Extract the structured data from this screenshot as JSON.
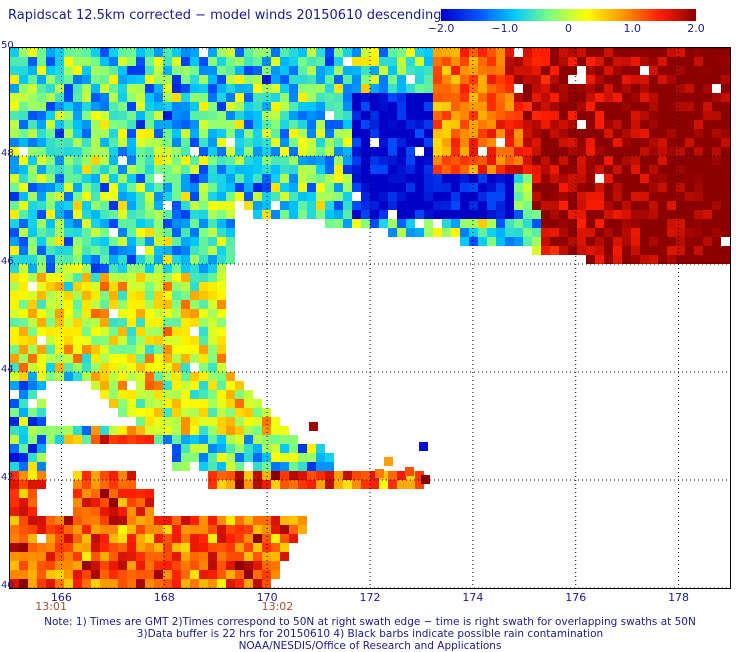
{
  "title": "Rapidscat 12.5km corrected − model winds 20150610 descending",
  "colorbar": {
    "labels": [
      "−2.0",
      "−1.0",
      "0",
      "1.0",
      "2.0"
    ],
    "values": [
      -2.0,
      -1.0,
      0,
      1.0,
      2.0
    ],
    "min": -2.0,
    "max": 2.0,
    "colors": [
      "#0000c8",
      "#0050ff",
      "#00c8ff",
      "#80ff80",
      "#ffff00",
      "#ff9600",
      "#ff1e00",
      "#8c0000"
    ]
  },
  "map": {
    "lon_range": [
      165,
      179
    ],
    "lat_range": [
      40,
      50
    ],
    "lat_labels": [
      "50",
      "48",
      "46",
      "44",
      "42",
      "40"
    ],
    "lat_values": [
      50,
      48,
      46,
      44,
      42,
      40
    ],
    "lon_labels": [
      "166",
      "168",
      "170",
      "172",
      "174",
      "176",
      "178"
    ],
    "lon_values": [
      166,
      168,
      170,
      172,
      174,
      176,
      178
    ],
    "time_labels": [
      {
        "text": "13:01",
        "lon": 165.8
      },
      {
        "text": "13:02",
        "lon": 170.2
      }
    ]
  },
  "notes": [
    "Note: 1) Times are GMT 2)Times correspond to 50N at right swath edge − time is right swath for overlapping swaths at 50N",
    "3)Data buffer is 22 hrs for 20150610 4) Black barbs indicate possible rain contamination",
    "NOAA/NESDIS/Office of Research and Applications"
  ]
}
